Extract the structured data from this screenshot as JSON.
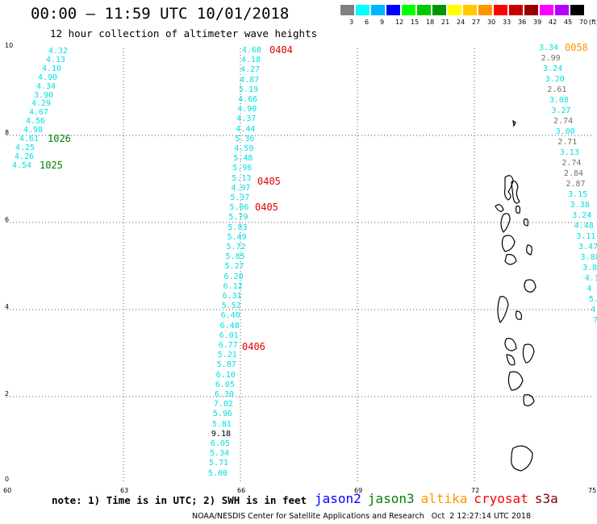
{
  "header": {
    "title": "00:00 – 11:59 UTC 10/01/2018",
    "subtitle": "12 hour collection of altimeter wave heights"
  },
  "colorbar": {
    "unit": "(ft)",
    "levels": [
      "3",
      "6",
      "9",
      "12",
      "15",
      "18",
      "21",
      "24",
      "27",
      "30",
      "33",
      "36",
      "39",
      "42",
      "45",
      "70"
    ],
    "colors": [
      "#808080",
      "#00ffff",
      "#00b4ff",
      "#0000ff",
      "#00ff00",
      "#00c800",
      "#009600",
      "#ffff00",
      "#ffc800",
      "#ff9600",
      "#ff0000",
      "#c80000",
      "#960000",
      "#ff00ff",
      "#b400ff",
      "#000000"
    ]
  },
  "map": {
    "lon_ticks": [
      "60",
      "63",
      "66",
      "69",
      "72",
      "75"
    ],
    "lat_ticks": [
      "0",
      "2",
      "4",
      "6",
      "8",
      "10"
    ],
    "track_a": {
      "values": [
        "4.32",
        "4.13",
        "4.10",
        "4.90",
        "4.34",
        "3.90",
        "4.29",
        "4.67",
        "4.56",
        "4.98",
        "4.61",
        "4.25",
        "4.26",
        "4.54"
      ],
      "times": [
        "1026",
        "1025"
      ]
    },
    "track_b": {
      "values": [
        "4.68",
        "4.18",
        "4.27",
        "4.87",
        "5.19",
        "4.66",
        "4.90",
        "4.37",
        "4.44",
        "5.36",
        "4.59",
        "5.48",
        "5.96",
        "5.13",
        "4.97",
        "5.37",
        "5.06",
        "5.79",
        "5.83",
        "5.49",
        "5.72",
        "5.85",
        "5.27",
        "6.20",
        "6.12",
        "6.31",
        "5.52",
        "6.40",
        "6.48",
        "6.01",
        "6.77",
        "5.21",
        "5.87",
        "6.10",
        "6.05",
        "6.30",
        "7.02",
        "5.96",
        "5.81",
        "9.18",
        "6.05",
        "5.34",
        "5.71",
        "5.00"
      ],
      "times": [
        "0404",
        "0405",
        "0405",
        "0406"
      ]
    },
    "track_c": {
      "values": [
        "3.34",
        "2.99",
        "3.24",
        "3.20",
        "2.61",
        "3.08",
        "3.27",
        "2.74",
        "3.00",
        "2.71",
        "3.13",
        "2.74",
        "2.84",
        "2.87",
        "3.15",
        "3.38",
        "3.24",
        "4.48",
        "3.11",
        "3.47",
        "3.88",
        "3.8",
        "4.1",
        "4",
        "5.",
        "4.",
        "7"
      ],
      "times": [
        "0058"
      ]
    }
  },
  "legend": {
    "note": "note: 1) Time is in UTC; 2) SWH is in feet",
    "satellites": [
      {
        "name": "jason2",
        "color": "#0000ff"
      },
      {
        "name": "jason3",
        "color": "#008000"
      },
      {
        "name": "altika",
        "color": "#ff9600"
      },
      {
        "name": "cryosat",
        "color": "#ff0000"
      },
      {
        "name": "s3a",
        "color": "#800000"
      }
    ]
  },
  "credit": "NOAA/NESDIS Center for Satellite Applications and Research   Oct  2 12:27:14 UTC 2018"
}
